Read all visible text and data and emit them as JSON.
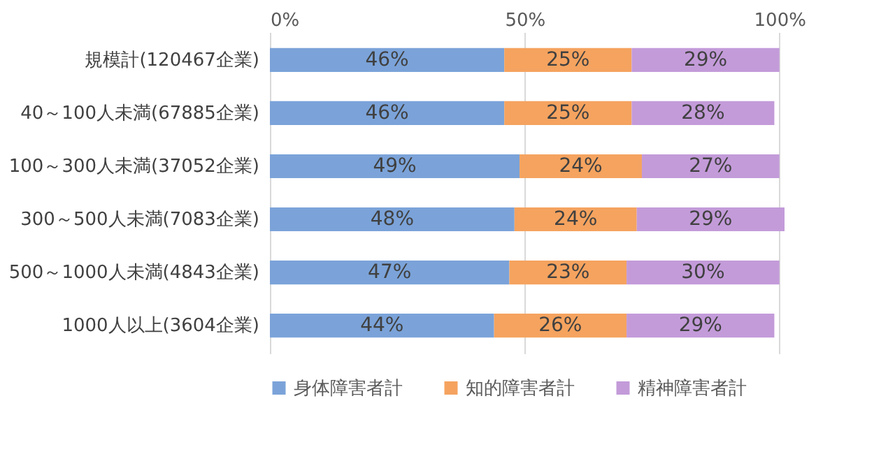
{
  "chart_data": {
    "type": "bar",
    "orientation": "horizontal",
    "stacked": true,
    "categories": [
      "規模計(120467企業)",
      "40～100人未満(67885企業)",
      "100～300人未満(37052企業)",
      "300～500人未満(7083企業)",
      "500～1000人未満(4843企業)",
      "1000人以上(3604企業)"
    ],
    "series": [
      {
        "name": "身体障害者計",
        "color": "#7ba3d9",
        "values": [
          46,
          46,
          49,
          48,
          47,
          44
        ],
        "value_labels": [
          "46%",
          "46%",
          "49%",
          "48%",
          "47%",
          "44%"
        ]
      },
      {
        "name": "知的障害者計",
        "color": "#f5a35f",
        "values": [
          25,
          25,
          24,
          24,
          23,
          26
        ],
        "value_labels": [
          "25%",
          "25%",
          "24%",
          "24%",
          "23%",
          "26%"
        ]
      },
      {
        "name": "精神障害者計",
        "color": "#c39bd9",
        "values": [
          29,
          28,
          27,
          29,
          30,
          29
        ],
        "value_labels": [
          "29%",
          "28%",
          "27%",
          "29%",
          "30%",
          "29%"
        ]
      }
    ],
    "xlim": [
      0,
      101
    ],
    "xticks": [
      {
        "value": 0,
        "label": "0%"
      },
      {
        "value": 50,
        "label": "50%"
      },
      {
        "value": 100,
        "label": "100%"
      }
    ],
    "grid": "x",
    "legend": "bottom"
  }
}
